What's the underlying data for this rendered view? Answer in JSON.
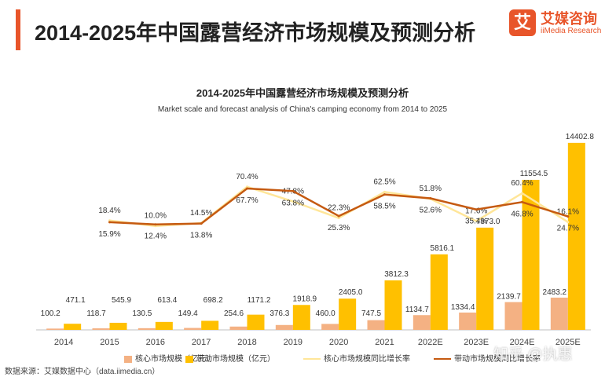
{
  "header": {
    "title": "2014-2025年中国露营经济市场规模及预测分析",
    "accent_color": "#e8552a"
  },
  "logo": {
    "mark": "艾",
    "name_cn": "艾媒咨询",
    "name_en": "iiMedia Research"
  },
  "chart_data": {
    "type": "bar",
    "title": "2014-2025年中国露营经济市场规模及预测分析",
    "subtitle": "Market scale and forecast analysis of China's camping economy from 2014 to 2025",
    "categories": [
      "2014",
      "2015",
      "2016",
      "2017",
      "2018",
      "2019",
      "2020",
      "2021",
      "2022E",
      "2023E",
      "2024E",
      "2025E"
    ],
    "series": [
      {
        "name": "核心市场规模（亿元）",
        "kind": "bar",
        "color": "#f4b183",
        "values": [
          100.2,
          118.7,
          130.5,
          149.4,
          254.6,
          376.3,
          460.0,
          747.5,
          1134.7,
          1334.4,
          2139.7,
          2483.2
        ],
        "labels": [
          "100.2",
          "118.7",
          "130.5",
          "149.4",
          "254.6",
          "376.3",
          "460.0",
          "747.5",
          "1134.7",
          "1334.4",
          "2139.7",
          "2483.2"
        ]
      },
      {
        "name": "带动市场规模（亿元）",
        "kind": "bar",
        "color": "#ffc000",
        "values": [
          471.1,
          545.9,
          613.4,
          698.2,
          1171.2,
          1918.9,
          2405.0,
          3812.3,
          5816.1,
          7873.0,
          11554.5,
          14402.8
        ],
        "labels": [
          "471.1",
          "545.9",
          "613.4",
          "698.2",
          "1171.2",
          "1918.9",
          "2405.0",
          "3812.3",
          "5816.1",
          "7873.0",
          "11554.5",
          "14402.8"
        ]
      },
      {
        "name": "核心市场规模同比增长率",
        "kind": "line",
        "color": "#ffe699",
        "values": [
          null,
          18.4,
          10.0,
          14.5,
          70.4,
          47.8,
          22.3,
          62.5,
          51.8,
          17.6,
          60.4,
          16.1
        ],
        "labels": [
          "",
          "18.4%",
          "10.0%",
          "14.5%",
          "70.4%",
          "47.8%",
          "22.3%",
          "62.5%",
          "51.8%",
          "17.6%",
          "60.4%",
          "16.1%"
        ]
      },
      {
        "name": "带动市场规模同比增长率",
        "kind": "line",
        "color": "#c55a11",
        "values": [
          null,
          15.9,
          12.4,
          13.8,
          67.7,
          63.8,
          25.3,
          58.5,
          52.6,
          35.4,
          46.8,
          24.7
        ],
        "labels": [
          "",
          "15.9%",
          "12.4%",
          "13.8%",
          "67.7%",
          "63.8%",
          "25.3%",
          "58.5%",
          "52.6%",
          "35.4%",
          "46.8%",
          "24.7%"
        ]
      }
    ],
    "bar_axis_range": [
      0,
      15000
    ],
    "rate_axis_range": [
      -150,
      150
    ],
    "legend_position": "bottom",
    "grid": false
  },
  "source": "数据来源：艾媒数据中心（data.iimedia.cn）",
  "watermark": "知乎 @执惠"
}
